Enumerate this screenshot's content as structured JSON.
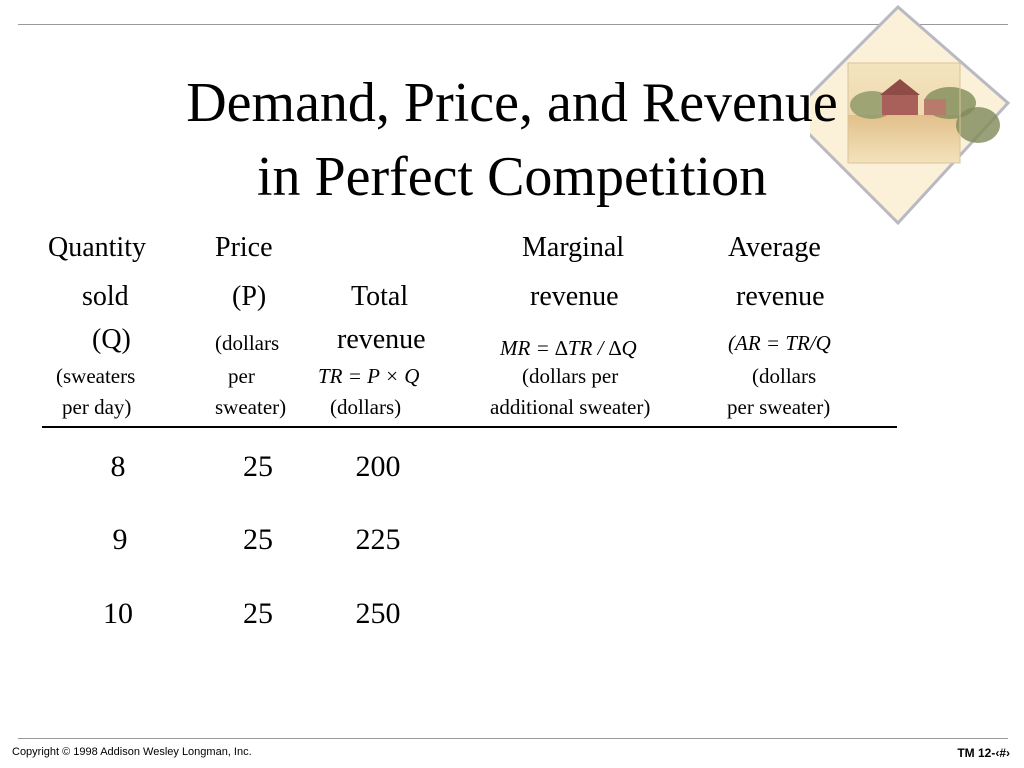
{
  "slide": {
    "title_line1": "Demand, Price, and Revenue",
    "title_line2": "in Perfect Competition"
  },
  "table": {
    "headers": {
      "quantity": {
        "line1": "Quantity",
        "line2": "sold",
        "line3": "(Q)",
        "line4": "(sweaters",
        "line5": "per day)"
      },
      "price": {
        "line1": "Price",
        "line2": "(P)",
        "line3": "(dollars",
        "line4": "per",
        "line5": "sweater)"
      },
      "total_revenue": {
        "line1": "Total",
        "line2": "revenue",
        "formula": "TR = P × Q",
        "line4": "(dollars)"
      },
      "marginal_revenue": {
        "line1": "Marginal",
        "line2": "revenue",
        "formula": "MR = ∆TR / ∆Q",
        "line4": "(dollars per",
        "line5": "additional sweater)"
      },
      "average_revenue": {
        "line1": "Average",
        "line2": "revenue",
        "formula": "(AR = TR/Q",
        "line4": "(dollars",
        "line5": "per sweater)"
      }
    },
    "rows": [
      {
        "quantity": "8",
        "price": "25",
        "total_revenue": "200"
      },
      {
        "quantity": "9",
        "price": "25",
        "total_revenue": "225"
      },
      {
        "quantity": "10",
        "price": "25",
        "total_revenue": "250"
      }
    ]
  },
  "footer": {
    "copyright": "Copyright © 1998 Addison Wesley Longman, Inc.",
    "slide_number": "TM 12-‹#›"
  },
  "colors": {
    "rule": "#9a9a9a",
    "diamond_fill": "#f5e6c4",
    "diamond_edge": "#b9b9c3"
  },
  "icons": {
    "decoration": "farm-landscape-diamond-image"
  }
}
